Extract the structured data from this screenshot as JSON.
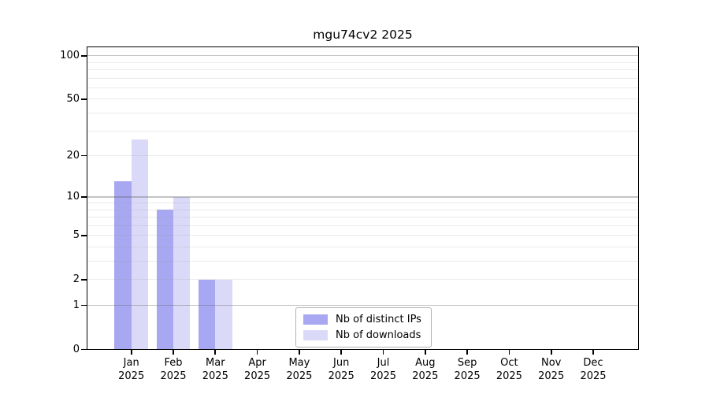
{
  "chart_data": {
    "type": "bar",
    "title": "mgu74cv2 2025",
    "categories": [
      "Jan",
      "Feb",
      "Mar",
      "Apr",
      "May",
      "Jun",
      "Jul",
      "Aug",
      "Sep",
      "Oct",
      "Nov",
      "Dec"
    ],
    "x_tick_year": "2025",
    "series": [
      {
        "name": "Nb of distinct IPs",
        "color": "#a8a8f2",
        "values": [
          13,
          8,
          2,
          0,
          0,
          0,
          0,
          0,
          0,
          0,
          0,
          0
        ]
      },
      {
        "name": "Nb of downloads",
        "color": "#dadaf8",
        "values": [
          26,
          10,
          2,
          0,
          0,
          0,
          0,
          0,
          0,
          0,
          0,
          0
        ]
      }
    ],
    "yscale": "log1p",
    "yticks": [
      0,
      1,
      2,
      5,
      10,
      20,
      50,
      100
    ],
    "ylim": [
      0,
      100
    ],
    "grid": true,
    "legend_position": "lower center",
    "colors": {
      "major_grid": "#c6c6c6",
      "minor_grid": "#ebebeb",
      "axis": "#000000",
      "background": "#ffffff"
    }
  }
}
